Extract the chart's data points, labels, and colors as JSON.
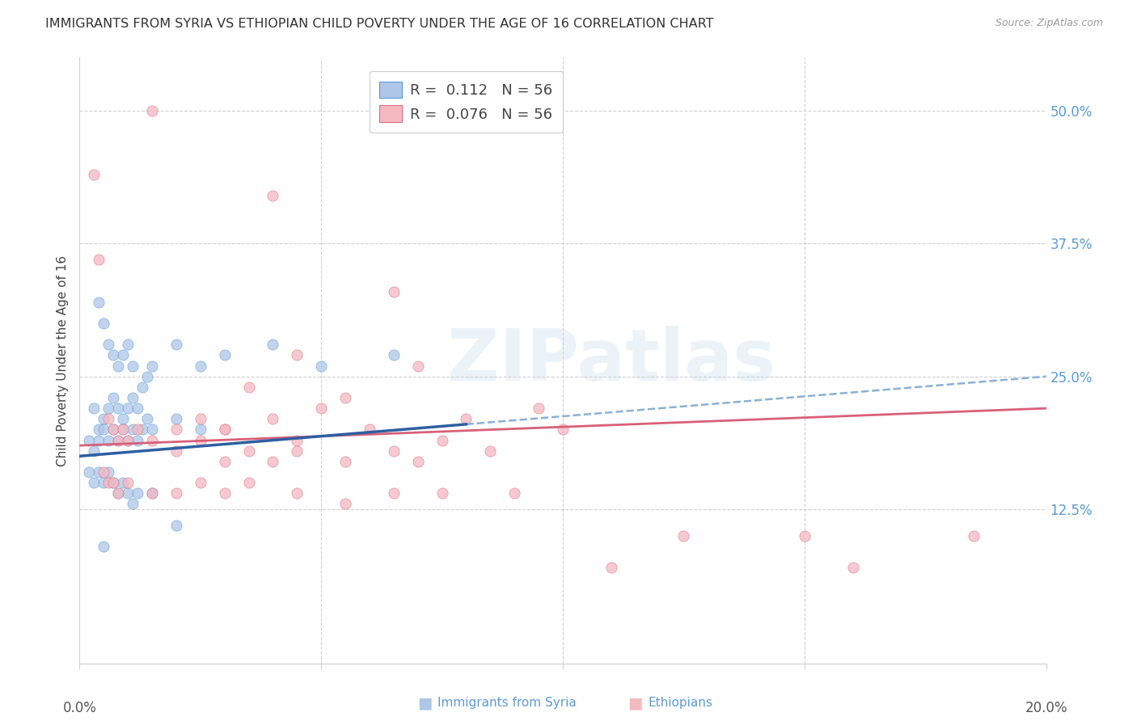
{
  "title": "IMMIGRANTS FROM SYRIA VS ETHIOPIAN CHILD POVERTY UNDER THE AGE OF 16 CORRELATION CHART",
  "source": "Source: ZipAtlas.com",
  "ylabel": "Child Poverty Under the Age of 16",
  "ytick_values": [
    12.5,
    25.0,
    37.5,
    50.0
  ],
  "xlim": [
    0,
    20
  ],
  "ylim": [
    -2,
    55
  ],
  "legend_R_syria": "0.112",
  "legend_R_ethiopia": "0.076",
  "legend_N": "56",
  "watermark_text": "ZIPatlas",
  "syria_color": "#aec6e8",
  "syria_edge_color": "#5b9bd5",
  "ethiopia_color": "#f4b8c1",
  "ethiopia_edge_color": "#e07080",
  "syria_line_color": "#2e5fa3",
  "syria_dash_color": "#8ab0d8",
  "ethiopia_line_color": "#d95f7a",
  "grid_color": "#d0d0d0",
  "background_color": "#ffffff",
  "title_fontsize": 11.5,
  "source_fontsize": 9,
  "axis_label_fontsize": 11,
  "tick_fontsize": 12,
  "legend_fontsize": 13,
  "marker_size": 90,
  "syria_trend_x0": 0,
  "syria_trend_y0": 17.5,
  "syria_trend_x1": 8,
  "syria_trend_y1": 20.5,
  "syria_dash_x0": 8,
  "syria_dash_y0": 20.5,
  "syria_dash_x1": 20,
  "syria_dash_y1": 25.0,
  "ethiopia_trend_x0": 0,
  "ethiopia_trend_y0": 18.5,
  "ethiopia_trend_x1": 20,
  "ethiopia_trend_y1": 22.0,
  "syria_scatter": [
    [
      0.4,
      32
    ],
    [
      0.5,
      30
    ],
    [
      0.6,
      28
    ],
    [
      0.7,
      27
    ],
    [
      0.8,
      26
    ],
    [
      0.9,
      27
    ],
    [
      1.0,
      28
    ],
    [
      1.1,
      26
    ],
    [
      0.3,
      22
    ],
    [
      0.4,
      20
    ],
    [
      0.5,
      21
    ],
    [
      0.6,
      22
    ],
    [
      0.7,
      23
    ],
    [
      0.8,
      22
    ],
    [
      0.9,
      21
    ],
    [
      1.0,
      22
    ],
    [
      1.1,
      23
    ],
    [
      1.2,
      22
    ],
    [
      1.3,
      24
    ],
    [
      1.4,
      25
    ],
    [
      1.5,
      26
    ],
    [
      2.0,
      28
    ],
    [
      2.5,
      26
    ],
    [
      3.0,
      27
    ],
    [
      4.0,
      28
    ],
    [
      5.0,
      26
    ],
    [
      6.5,
      27
    ],
    [
      0.2,
      19
    ],
    [
      0.3,
      18
    ],
    [
      0.4,
      19
    ],
    [
      0.5,
      20
    ],
    [
      0.6,
      19
    ],
    [
      0.7,
      20
    ],
    [
      0.8,
      19
    ],
    [
      0.9,
      20
    ],
    [
      1.0,
      19
    ],
    [
      1.1,
      20
    ],
    [
      1.2,
      19
    ],
    [
      1.3,
      20
    ],
    [
      1.4,
      21
    ],
    [
      1.5,
      20
    ],
    [
      2.0,
      21
    ],
    [
      2.5,
      20
    ],
    [
      0.2,
      16
    ],
    [
      0.3,
      15
    ],
    [
      0.4,
      16
    ],
    [
      0.5,
      15
    ],
    [
      0.6,
      16
    ],
    [
      0.7,
      15
    ],
    [
      0.8,
      14
    ],
    [
      0.9,
      15
    ],
    [
      1.0,
      14
    ],
    [
      1.1,
      13
    ],
    [
      1.2,
      14
    ],
    [
      1.5,
      14
    ],
    [
      2.0,
      11
    ],
    [
      0.5,
      9
    ]
  ],
  "ethiopia_scatter": [
    [
      0.3,
      44
    ],
    [
      4.0,
      42
    ],
    [
      1.5,
      50
    ],
    [
      0.4,
      36
    ],
    [
      6.5,
      33
    ],
    [
      4.5,
      27
    ],
    [
      7.0,
      26
    ],
    [
      5.5,
      23
    ],
    [
      3.5,
      24
    ],
    [
      5.0,
      22
    ],
    [
      4.0,
      21
    ],
    [
      8.0,
      21
    ],
    [
      9.5,
      22
    ],
    [
      3.0,
      20
    ],
    [
      4.5,
      19
    ],
    [
      6.0,
      20
    ],
    [
      7.5,
      19
    ],
    [
      10.0,
      20
    ],
    [
      2.5,
      19
    ],
    [
      3.5,
      18
    ],
    [
      4.5,
      18
    ],
    [
      6.5,
      18
    ],
    [
      8.5,
      18
    ],
    [
      2.0,
      18
    ],
    [
      3.0,
      17
    ],
    [
      4.0,
      17
    ],
    [
      5.5,
      17
    ],
    [
      7.0,
      17
    ],
    [
      0.6,
      21
    ],
    [
      0.7,
      20
    ],
    [
      0.8,
      19
    ],
    [
      0.9,
      20
    ],
    [
      1.0,
      19
    ],
    [
      1.2,
      20
    ],
    [
      1.5,
      19
    ],
    [
      2.0,
      20
    ],
    [
      2.5,
      21
    ],
    [
      3.0,
      20
    ],
    [
      0.5,
      16
    ],
    [
      0.6,
      15
    ],
    [
      0.7,
      15
    ],
    [
      0.8,
      14
    ],
    [
      1.0,
      15
    ],
    [
      1.5,
      14
    ],
    [
      2.0,
      14
    ],
    [
      2.5,
      15
    ],
    [
      3.0,
      14
    ],
    [
      3.5,
      15
    ],
    [
      4.5,
      14
    ],
    [
      5.5,
      13
    ],
    [
      6.5,
      14
    ],
    [
      7.5,
      14
    ],
    [
      9.0,
      14
    ],
    [
      12.5,
      10
    ],
    [
      15.0,
      10
    ],
    [
      18.5,
      10
    ],
    [
      11.0,
      7
    ],
    [
      16.0,
      7
    ]
  ]
}
